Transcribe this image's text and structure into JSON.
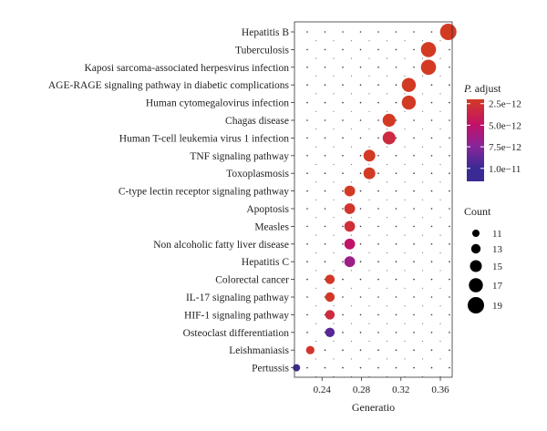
{
  "chart_data": {
    "type": "scatter",
    "xlabel": "Generatio",
    "ylabel": "",
    "title": "",
    "xlim": [
      0.212,
      0.372
    ],
    "x_ticks": [
      0.24,
      0.28,
      0.32,
      0.36
    ],
    "x_tick_labels": [
      "0.24",
      "0.28",
      "0.32",
      "0.36"
    ],
    "grid": "dotted",
    "points": [
      {
        "label": "Hepatitis B",
        "x": 0.368,
        "count": 19,
        "p_adjust": 2e-12
      },
      {
        "label": "Tuberculosis",
        "x": 0.348,
        "count": 18,
        "p_adjust": 2e-12
      },
      {
        "label": "Kaposi sarcoma-associated herpesvirus infection",
        "x": 0.348,
        "count": 18,
        "p_adjust": 2e-12
      },
      {
        "label": "AGE-RAGE signaling pathway in diabetic complications",
        "x": 0.328,
        "count": 17,
        "p_adjust": 2.1e-12
      },
      {
        "label": "Human cytomegalovirus infection",
        "x": 0.328,
        "count": 17,
        "p_adjust": 2.1e-12
      },
      {
        "label": "Chagas disease",
        "x": 0.308,
        "count": 16,
        "p_adjust": 2.3e-12
      },
      {
        "label": "Human T-cell leukemia virus 1 infection",
        "x": 0.308,
        "count": 16,
        "p_adjust": 3.5e-12
      },
      {
        "label": "TNF signaling pathway",
        "x": 0.288,
        "count": 15,
        "p_adjust": 2.3e-12
      },
      {
        "label": "Toxoplasmosis",
        "x": 0.288,
        "count": 15,
        "p_adjust": 2.3e-12
      },
      {
        "label": "C-type lectin receptor signaling pathway",
        "x": 0.268,
        "count": 14,
        "p_adjust": 2.5e-12
      },
      {
        "label": "Apoptosis",
        "x": 0.268,
        "count": 14,
        "p_adjust": 2.8e-12
      },
      {
        "label": "Measles",
        "x": 0.268,
        "count": 14,
        "p_adjust": 3.2e-12
      },
      {
        "label": "Non alcoholic fatty liver disease",
        "x": 0.268,
        "count": 14,
        "p_adjust": 5e-12
      },
      {
        "label": "Hepatitis C",
        "x": 0.268,
        "count": 14,
        "p_adjust": 6.5e-12
      },
      {
        "label": "Colorectal cancer",
        "x": 0.248,
        "count": 13,
        "p_adjust": 2.6e-12
      },
      {
        "label": "IL-17 signaling pathway",
        "x": 0.248,
        "count": 13,
        "p_adjust": 2.6e-12
      },
      {
        "label": "HIF-1 signaling pathway",
        "x": 0.248,
        "count": 13,
        "p_adjust": 3.5e-12
      },
      {
        "label": "Osteoclast differentiation",
        "x": 0.248,
        "count": 13,
        "p_adjust": 9e-12
      },
      {
        "label": "Leishmaniasis",
        "x": 0.228,
        "count": 12,
        "p_adjust": 2.8e-12
      },
      {
        "label": "Pertussis",
        "x": 0.214,
        "count": 11,
        "p_adjust": 1.15e-11
      }
    ],
    "color_legend": {
      "title": "P. adjust",
      "labels": [
        "2.5e−12",
        "5.0e−12",
        "7.5e−12",
        "1.0e−11"
      ],
      "values": [
        2.5e-12,
        5e-12,
        7.5e-12,
        1e-11
      ],
      "range": [
        2e-12,
        1.15e-11
      ],
      "colors": [
        "#d33a24",
        "#c1126a",
        "#86269a",
        "#3a2a94"
      ]
    },
    "size_legend": {
      "title": "Count",
      "labels": [
        "11",
        "13",
        "15",
        "17",
        "19"
      ],
      "values": [
        11,
        13,
        15,
        17,
        19
      ]
    }
  }
}
